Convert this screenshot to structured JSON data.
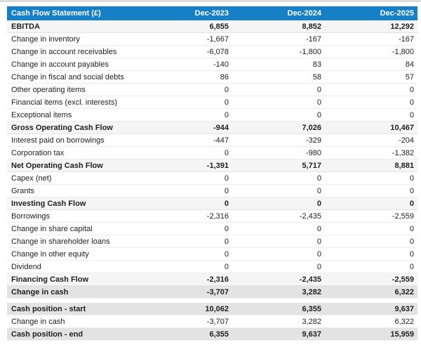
{
  "table": {
    "title": "Cash Flow Statement (£)",
    "columns": [
      "Dec-2023",
      "Dec-2024",
      "Dec-2025"
    ],
    "rows": [
      {
        "label": "EBITDA",
        "values": [
          "6,855",
          "8,852",
          "12,292"
        ],
        "style": "subtotal"
      },
      {
        "label": "Change in inventory",
        "values": [
          "-1,667",
          "-167",
          "-167"
        ],
        "style": "plain"
      },
      {
        "label": "Change in account receivables",
        "values": [
          "-6,078",
          "-1,800",
          "-1,800"
        ],
        "style": "plain"
      },
      {
        "label": "Change in account payables",
        "values": [
          "-140",
          "83",
          "84"
        ],
        "style": "plain"
      },
      {
        "label": "Change in fiscal and social debts",
        "values": [
          "86",
          "58",
          "57"
        ],
        "style": "plain"
      },
      {
        "label": "Other operating items",
        "values": [
          "0",
          "0",
          "0"
        ],
        "style": "plain"
      },
      {
        "label": "Financial items (excl. interests)",
        "values": [
          "0",
          "0",
          "0"
        ],
        "style": "plain"
      },
      {
        "label": "Exceptional items",
        "values": [
          "0",
          "0",
          "0"
        ],
        "style": "plain"
      },
      {
        "label": "Gross Operating Cash Flow",
        "values": [
          "-944",
          "7,026",
          "10,467"
        ],
        "style": "subtotal"
      },
      {
        "label": "Interest paid on borrowings",
        "values": [
          "-447",
          "-329",
          "-204"
        ],
        "style": "plain"
      },
      {
        "label": "Corporation tax",
        "values": [
          "0",
          "-980",
          "-1,382"
        ],
        "style": "plain"
      },
      {
        "label": "Net Operating Cash Flow",
        "values": [
          "-1,391",
          "5,717",
          "8,881"
        ],
        "style": "subtotal"
      },
      {
        "label": "Capex (net)",
        "values": [
          "0",
          "0",
          "0"
        ],
        "style": "plain"
      },
      {
        "label": "Grants",
        "values": [
          "0",
          "0",
          "0"
        ],
        "style": "plain"
      },
      {
        "label": "Investing Cash Flow",
        "values": [
          "0",
          "0",
          "0"
        ],
        "style": "subtotal"
      },
      {
        "label": "Borrowings",
        "values": [
          "-2,316",
          "-2,435",
          "-2,559"
        ],
        "style": "plain"
      },
      {
        "label": "Change in share capital",
        "values": [
          "0",
          "0",
          "0"
        ],
        "style": "plain"
      },
      {
        "label": "Change in shareholder loans",
        "values": [
          "0",
          "0",
          "0"
        ],
        "style": "plain"
      },
      {
        "label": "Change in other equity",
        "values": [
          "0",
          "0",
          "0"
        ],
        "style": "plain"
      },
      {
        "label": "Dividend",
        "values": [
          "0",
          "0",
          "0"
        ],
        "style": "plain"
      },
      {
        "label": "Financing Cash Flow",
        "values": [
          "-2,316",
          "-2,435",
          "-2,559"
        ],
        "style": "subtotal"
      },
      {
        "label": "Change in cash",
        "values": [
          "-3,707",
          "3,282",
          "6,322"
        ],
        "style": "summary"
      },
      {
        "label": "Cash position - start",
        "values": [
          "10,062",
          "6,355",
          "9,637"
        ],
        "style": "summary",
        "gap_before": true
      },
      {
        "label": "Change in cash",
        "values": [
          "-3,707",
          "3,282",
          "6,322"
        ],
        "style": "plain"
      },
      {
        "label": "Cash position - end",
        "values": [
          "6,355",
          "9,637",
          "15,959"
        ],
        "style": "summary"
      }
    ]
  },
  "colors": {
    "header_bg": "#1680c6",
    "header_text": "#ffffff",
    "subtotal_row_bg": "#f5f5f5",
    "summary_row_bg": "#e3e3e3",
    "body_text": "#212121"
  }
}
